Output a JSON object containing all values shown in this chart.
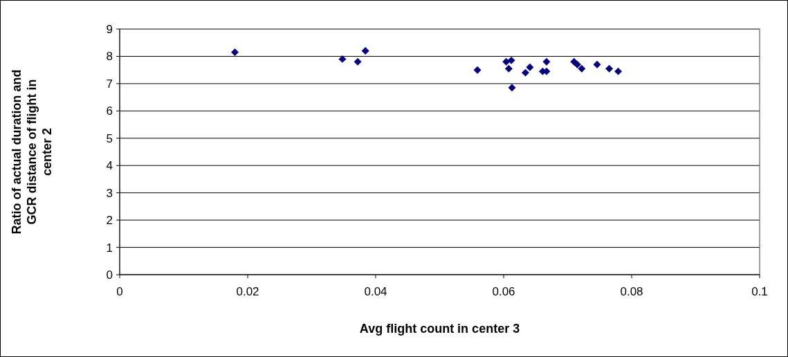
{
  "chart_data": {
    "type": "scatter",
    "xlabel": "Avg flight count in center 3",
    "ylabel": "Ratio of actual duration and GCR distance of flight in center 2",
    "x": [
      0.018,
      0.0348,
      0.0372,
      0.0384,
      0.0559,
      0.0604,
      0.0612,
      0.0608,
      0.0613,
      0.0634,
      0.0641,
      0.0661,
      0.0667,
      0.0667,
      0.071,
      0.0715,
      0.0722,
      0.0746,
      0.0765,
      0.0779
    ],
    "values": [
      8.15,
      7.9,
      7.8,
      8.2,
      7.5,
      7.8,
      7.85,
      7.55,
      6.85,
      7.4,
      7.6,
      7.45,
      7.45,
      7.8,
      7.8,
      7.7,
      7.55,
      7.7,
      7.55,
      7.45
    ],
    "color": "#000080",
    "marker": "diamond",
    "xlim": [
      0,
      0.1
    ],
    "xticks": [
      0,
      0.02,
      0.04,
      0.06,
      0.08,
      0.1
    ],
    "ylim": [
      0,
      9
    ],
    "yticks": [
      0,
      1,
      2,
      3,
      4,
      5,
      6,
      7,
      8,
      9
    ],
    "grid": "y"
  }
}
